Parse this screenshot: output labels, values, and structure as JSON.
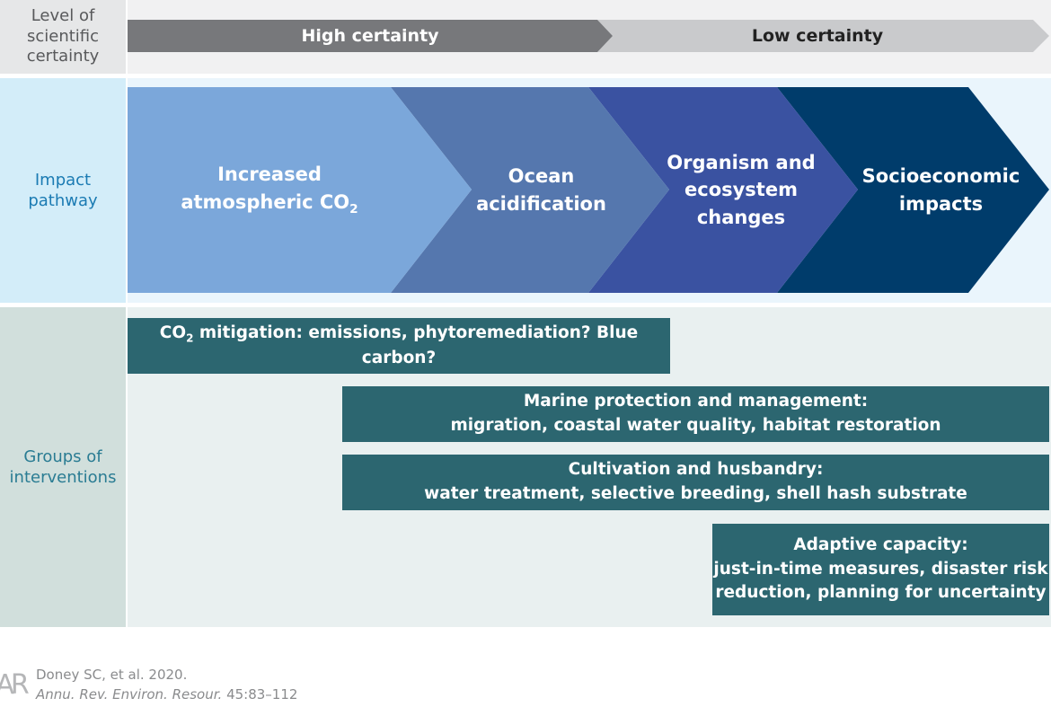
{
  "certainty": {
    "label": [
      "Level of",
      "scientific",
      "certainty"
    ],
    "levels": [
      "High certainty",
      "Low certainty"
    ]
  },
  "pathway": {
    "label": [
      "Impact",
      "pathway"
    ],
    "steps": [
      {
        "lines": [
          "Increased",
          [
            {
              "text": "atmospheric CO"
            },
            {
              "sub": "2"
            }
          ]
        ]
      },
      {
        "lines": [
          "Ocean",
          "acidification"
        ]
      },
      {
        "lines": [
          "Organism and",
          "ecosystem",
          "changes"
        ]
      },
      {
        "lines": [
          "Socioeconomic",
          "impacts"
        ]
      }
    ]
  },
  "interventions": {
    "label": [
      "Groups of",
      "interventions"
    ],
    "groups": [
      {
        "lines": [
          [
            {
              "text": "CO"
            },
            {
              "sub": "2"
            },
            {
              "text": " mitigation: emissions, phytoremediation? Blue carbon?"
            }
          ]
        ]
      },
      {
        "lines": [
          "Marine protection and management:",
          "migration, coastal water quality, habitat restoration"
        ]
      },
      {
        "lines": [
          "Cultivation and husbandry:",
          "water treatment, selective breeding, shell hash substrate"
        ]
      },
      {
        "lines": [
          "Adaptive capacity:",
          "just-in-time measures, disaster risk",
          "reduction, planning for uncertainty"
        ]
      }
    ]
  },
  "footer": {
    "logo": "AR",
    "citation": [
      "Doney SC, et al. 2020.",
      [
        {
          "italic": "Annu. Rev. Environ. Resour."
        },
        {
          "text": " 45:83–112"
        }
      ]
    ]
  }
}
